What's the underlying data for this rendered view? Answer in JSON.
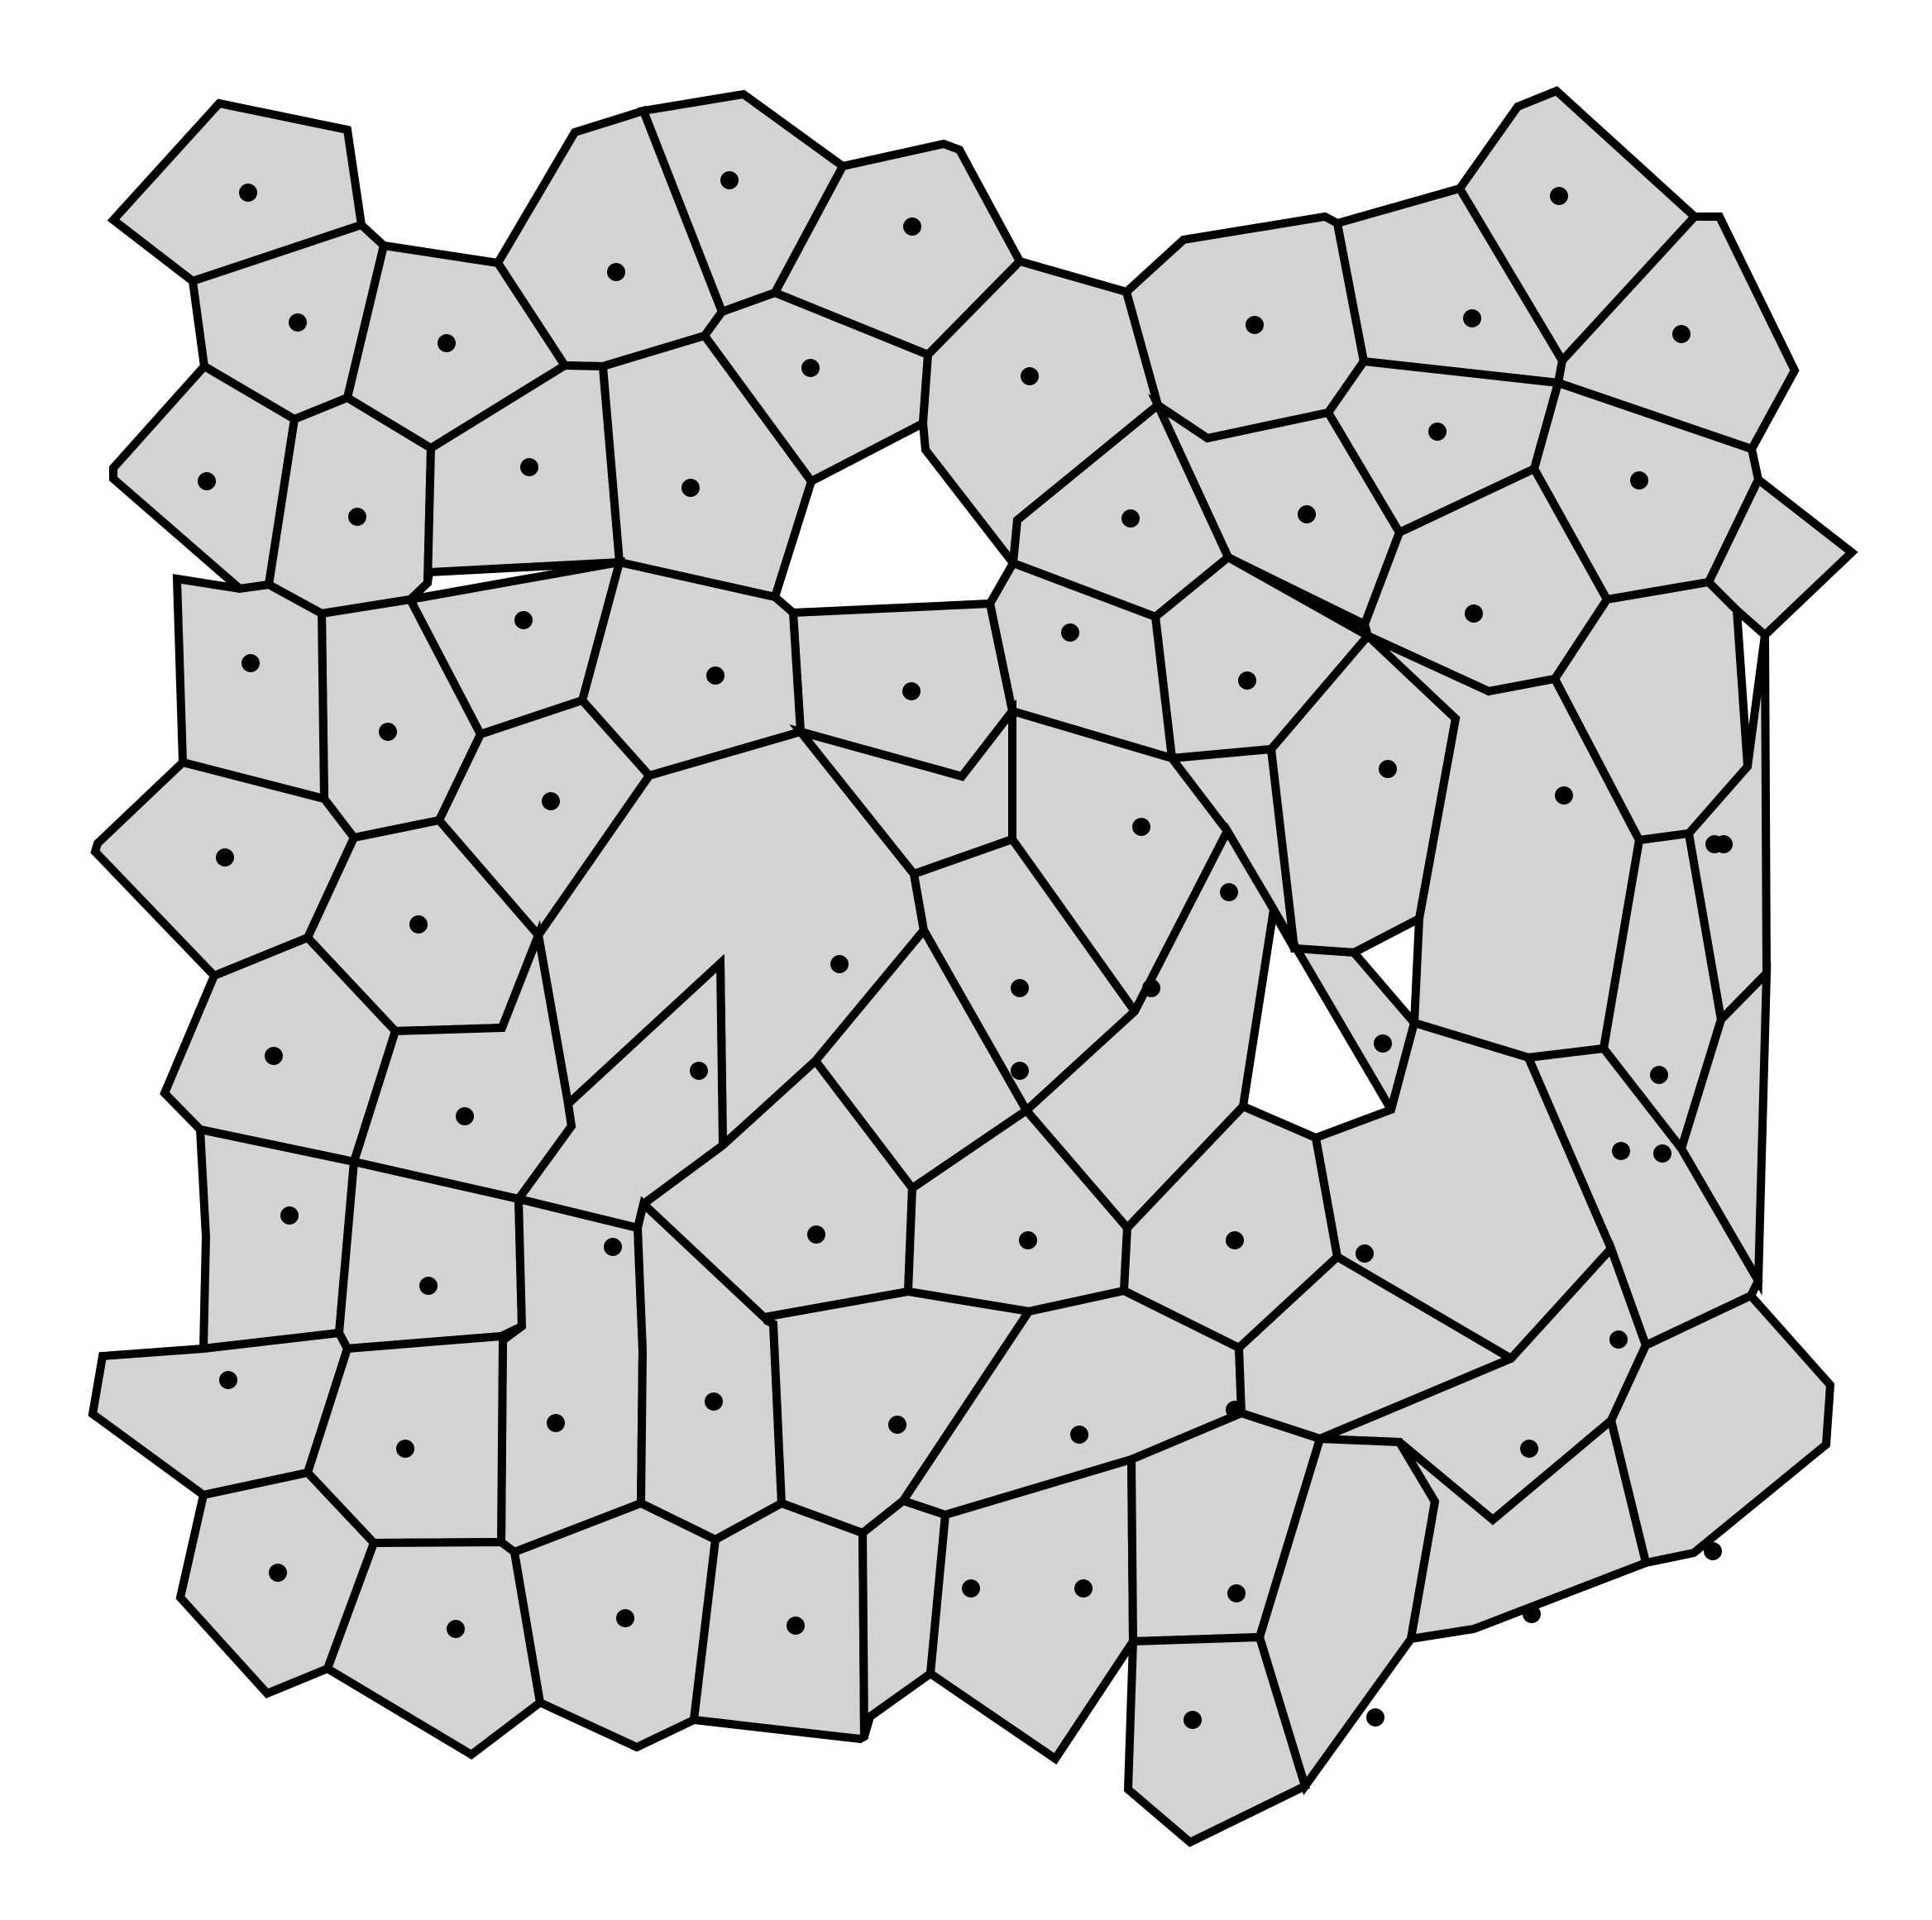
{
  "diagram": {
    "type": "voronoi-tessellation",
    "cell_color": "#d3d3d3",
    "edge_color": "#000000",
    "site_color": "#000000",
    "background": "#ffffff"
  }
}
